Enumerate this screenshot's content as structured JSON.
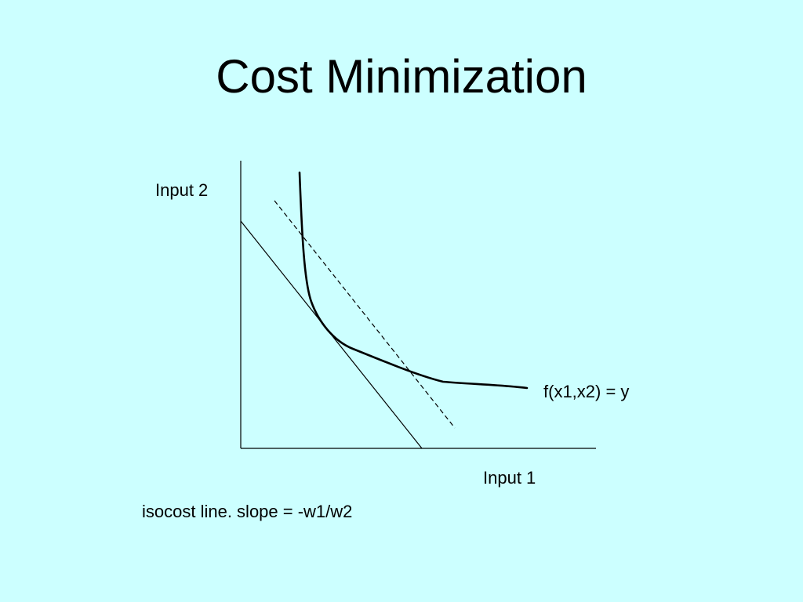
{
  "slide": {
    "title": "Cost Minimization",
    "background_color": "#CCFFFF"
  },
  "diagram": {
    "y_axis_label": "Input 2",
    "x_axis_label": "Input 1",
    "isoquant_label": "f(x1,x2) = y",
    "isocost_label": "isocost line. slope = -w1/w2",
    "line_color": "#000000"
  }
}
